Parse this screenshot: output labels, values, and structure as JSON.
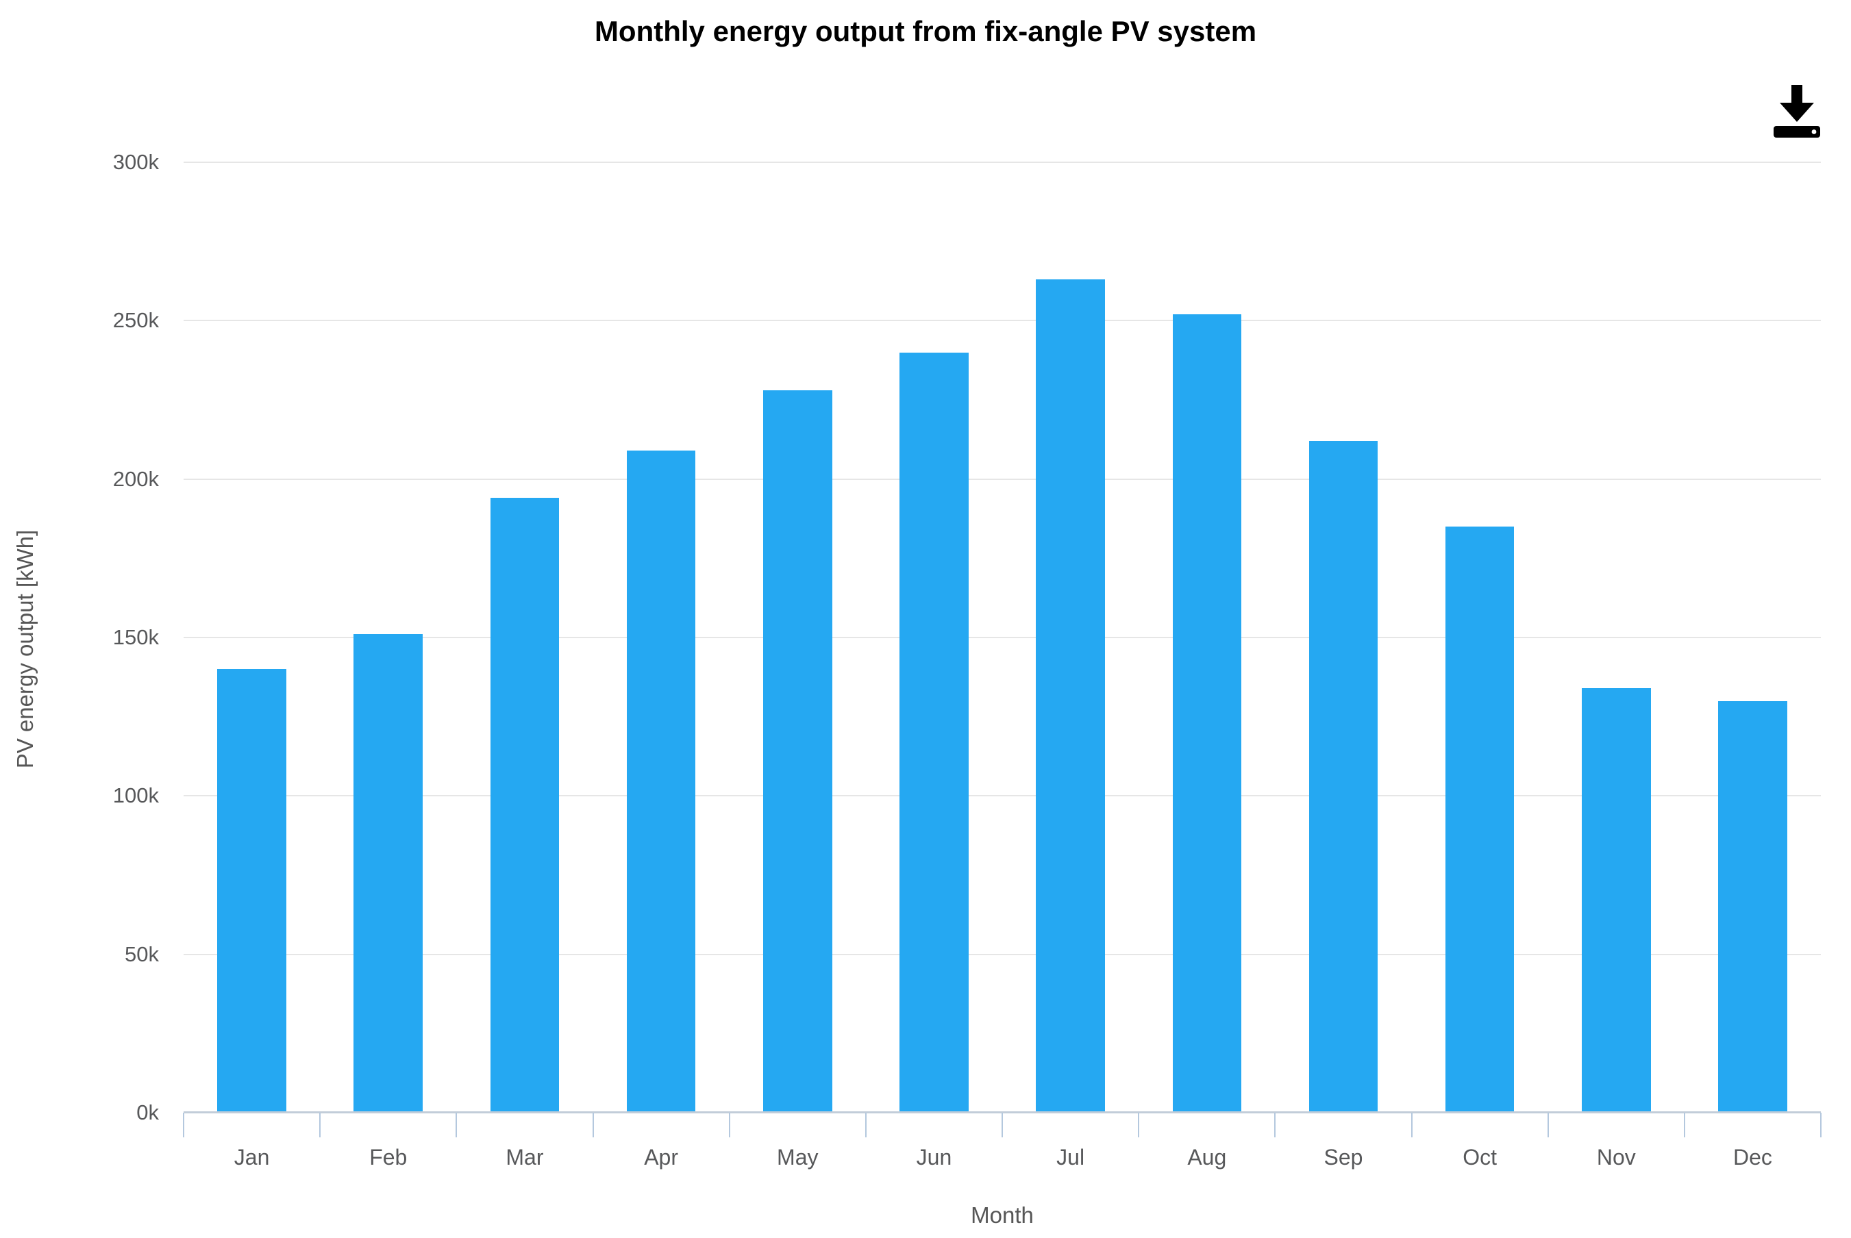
{
  "title": "Monthly energy output from fix-angle PV system",
  "toolbar": {
    "save_icon": "download-icon"
  },
  "chart_data": {
    "type": "bar",
    "title": "Monthly energy output from fix-angle PV system",
    "categories": [
      "Jan",
      "Feb",
      "Mar",
      "Apr",
      "May",
      "Jun",
      "Jul",
      "Aug",
      "Sep",
      "Oct",
      "Nov",
      "Dec"
    ],
    "values": [
      140000,
      151000,
      194000,
      209000,
      228000,
      240000,
      263000,
      252000,
      212000,
      185000,
      134000,
      130000
    ],
    "xlabel": "Month",
    "ylabel": "PV energy output [kWh]",
    "ylim": [
      0,
      300000
    ],
    "ytick_step": 50000,
    "ytick_labels": [
      "0k",
      "50k",
      "100k",
      "150k",
      "200k",
      "250k",
      "300k"
    ],
    "grid": true,
    "legend": false,
    "bar_color": "#25a8f2",
    "gridline_color": "#e6e6e6",
    "axis_line_color": "#c2cdd9",
    "tick_mark_color": "#b4c8de",
    "label_color": "#57585a",
    "title_color": "#000000"
  }
}
